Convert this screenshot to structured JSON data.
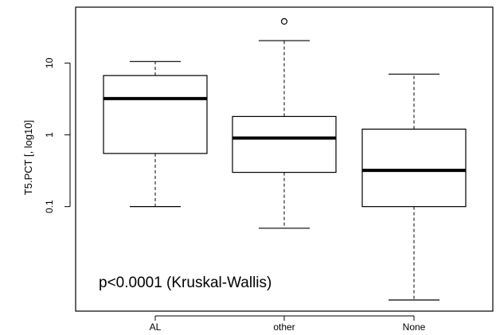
{
  "chart_data": {
    "type": "box",
    "ylabel": "T5.PCT [, log10]",
    "y_scale": "log10",
    "ylim": [
      0.0035,
      60
    ],
    "y_ticks": [
      {
        "value": 0.1,
        "label": "0.1"
      },
      {
        "value": 1,
        "label": "1"
      },
      {
        "value": 10,
        "label": "10"
      }
    ],
    "categories": [
      "AL",
      "other",
      "None"
    ],
    "boxes": [
      {
        "category": "AL",
        "whisker_low": 0.1,
        "q1": 0.55,
        "median": 3.2,
        "q3": 6.7,
        "whisker_high": 10.5,
        "outliers": []
      },
      {
        "category": "other",
        "whisker_low": 0.05,
        "q1": 0.3,
        "median": 0.9,
        "q3": 1.8,
        "whisker_high": 20.5,
        "outliers": [
          38
        ]
      },
      {
        "category": "None",
        "whisker_low": 0.005,
        "q1": 0.1,
        "median": 0.32,
        "q3": 1.2,
        "whisker_high": 7,
        "outliers": []
      }
    ],
    "annotation": "p<0.0001 (Kruskal-Wallis)",
    "grid": false,
    "colors": {
      "box_stroke": "#000000",
      "box_fill": "#ffffff",
      "median": "#000000"
    }
  }
}
